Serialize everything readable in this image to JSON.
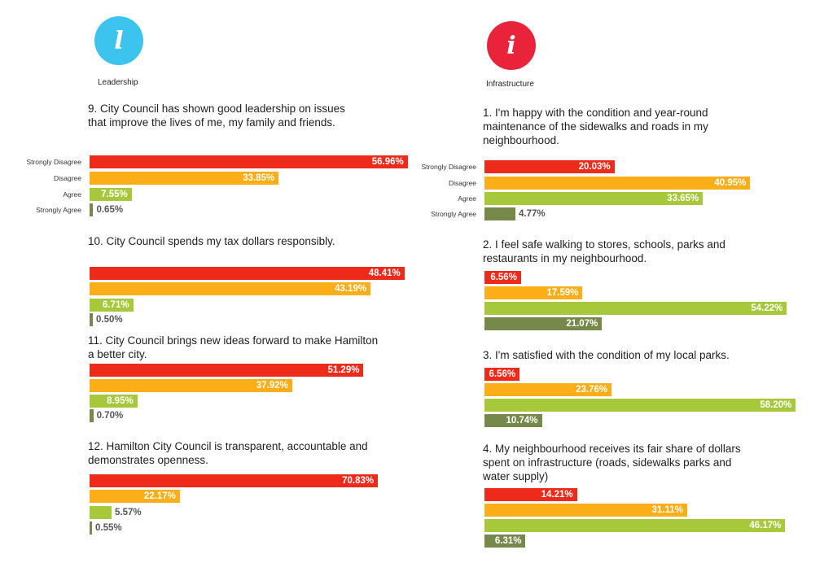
{
  "sections": [
    {
      "icon_glyph": "l",
      "icon_name": "leadership-icon",
      "color": "#3cc3ee",
      "label": "Leadership"
    },
    {
      "icon_glyph": "i",
      "icon_name": "infrastructure-icon",
      "color": "#e8233a",
      "label": "Infrastructure"
    }
  ],
  "colors": {
    "Strongly Disagree": "#ee2a1b",
    "Disagree": "#fbae17",
    "Agree": "#a6c83a",
    "Strongly Agree": "#76894a"
  },
  "chart_data": [
    {
      "type": "bar",
      "section": "Leadership",
      "title": "9. City Council has shown good leadership on issues that improve the lives of me, my family and friends.",
      "categories": [
        "Strongly Disagree",
        "Disagree",
        "Agree",
        "Strongly Agree"
      ],
      "values": [
        56.96,
        33.85,
        7.55,
        0.65
      ],
      "labels": [
        "56.96%",
        "33.85%",
        "7.55%",
        "0.65%"
      ]
    },
    {
      "type": "bar",
      "section": "Leadership",
      "title": "10. City Council spends my tax dollars responsibly.",
      "categories": [
        "Strongly Disagree",
        "Disagree",
        "Agree",
        "Strongly Agree"
      ],
      "values": [
        48.41,
        43.19,
        6.71,
        0.5
      ],
      "labels": [
        "48.41%",
        "43.19%",
        "6.71%",
        "0.50%"
      ]
    },
    {
      "type": "bar",
      "section": "Leadership",
      "title": "11. City Council brings new ideas forward to make Hamilton a better city.",
      "categories": [
        "Strongly Disagree",
        "Disagree",
        "Agree",
        "Strongly Agree"
      ],
      "values": [
        51.29,
        37.92,
        8.95,
        0.7
      ],
      "labels": [
        "51.29%",
        "37.92%",
        "8.95%",
        "0.70%"
      ]
    },
    {
      "type": "bar",
      "section": "Leadership",
      "title": "12. Hamilton City Council is transparent, accountable and demonstrates openness.",
      "categories": [
        "Strongly Disagree",
        "Disagree",
        "Agree",
        "Strongly Agree"
      ],
      "values": [
        70.83,
        22.17,
        5.57,
        0.55
      ],
      "labels": [
        "70.83%",
        "22.17%",
        "5.57%",
        "0.55%"
      ]
    },
    {
      "type": "bar",
      "section": "Infrastructure",
      "title": "1. I'm happy with the condition and year-round maintenance of the sidewalks and roads in my neighbourhood.",
      "categories": [
        "Strongly Disagree",
        "Disagree",
        "Agree",
        "Strongly Agree"
      ],
      "values": [
        20.03,
        40.95,
        33.65,
        4.77
      ],
      "labels": [
        "20.03%",
        "40.95%",
        "33.65%",
        "4.77%"
      ]
    },
    {
      "type": "bar",
      "section": "Infrastructure",
      "title": "2. I feel safe walking to stores, schools, parks and restaurants in my neighbourhood.",
      "categories": [
        "Strongly Disagree",
        "Disagree",
        "Agree",
        "Strongly Agree"
      ],
      "values": [
        6.56,
        17.59,
        54.22,
        21.07
      ],
      "labels": [
        "6.56%",
        "17.59%",
        "54.22%",
        "21.07%"
      ]
    },
    {
      "type": "bar",
      "section": "Infrastructure",
      "title": "3. I'm satisfied with the condition of my local parks.",
      "categories": [
        "Strongly Disagree",
        "Disagree",
        "Agree",
        "Strongly Agree"
      ],
      "values": [
        6.56,
        23.76,
        58.2,
        10.74
      ],
      "labels": [
        "6.56%",
        "23.76%",
        "58.20%",
        "10.74%"
      ]
    },
    {
      "type": "bar",
      "section": "Infrastructure",
      "title": "4. My neighbourhood receives its fair share of dollars spent on infrastructure (roads, sidewalks parks and water supply)",
      "categories": [
        "Strongly Disagree",
        "Disagree",
        "Agree",
        "Strongly Agree"
      ],
      "values": [
        14.21,
        31.11,
        46.17,
        6.31
      ],
      "labels": [
        "14.21%",
        "31.11%",
        "46.17%",
        "6.31%"
      ]
    }
  ]
}
